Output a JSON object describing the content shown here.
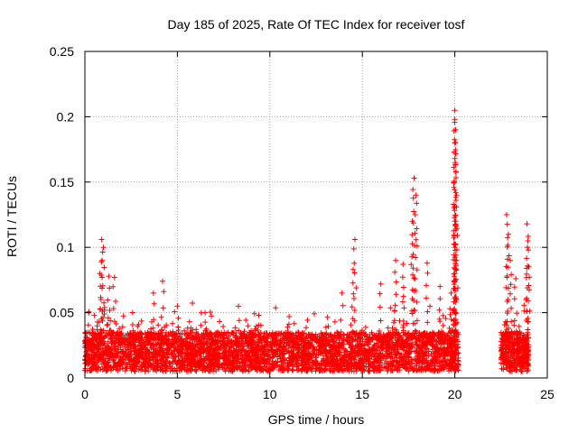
{
  "chart_data": {
    "type": "scatter",
    "title": "Day 185 of 2025, Rate Of TEC Index for receiver tosf",
    "xlabel": "GPS time / hours",
    "ylabel": "ROTI / TECUs",
    "xlim": [
      0,
      25
    ],
    "ylim": [
      0,
      0.25
    ],
    "x_ticks": [
      0,
      5,
      10,
      15,
      20,
      25
    ],
    "x_tick_labels": [
      "0",
      "5",
      "10",
      "15",
      "20",
      "25"
    ],
    "y_ticks": [
      0,
      0.05,
      0.1,
      0.15,
      0.2,
      0.25
    ],
    "y_tick_labels": [
      "0",
      "0.05",
      "0.1",
      "0.15",
      "0.2",
      "0.25"
    ],
    "grid": true,
    "marker": "+",
    "series_color": "#ff0000",
    "series": [
      {
        "name": "ROTI",
        "baseline_segments": [
          {
            "x_start": 0.0,
            "x_end": 20.2,
            "y_min": 0.005,
            "y_max": 0.035
          },
          {
            "x_start": 22.5,
            "x_end": 24.0,
            "y_min": 0.005,
            "y_max": 0.035
          }
        ],
        "peaks": [
          {
            "x": 0.2,
            "y": 0.05
          },
          {
            "x": 0.9,
            "y": 0.106
          },
          {
            "x": 1.0,
            "y": 0.1
          },
          {
            "x": 0.8,
            "y": 0.08
          },
          {
            "x": 1.3,
            "y": 0.078
          },
          {
            "x": 1.6,
            "y": 0.077
          },
          {
            "x": 3.7,
            "y": 0.065
          },
          {
            "x": 4.2,
            "y": 0.074
          },
          {
            "x": 5.0,
            "y": 0.055
          },
          {
            "x": 6.5,
            "y": 0.05
          },
          {
            "x": 8.3,
            "y": 0.055
          },
          {
            "x": 9.4,
            "y": 0.048
          },
          {
            "x": 13.9,
            "y": 0.065
          },
          {
            "x": 14.6,
            "y": 0.106
          },
          {
            "x": 14.5,
            "y": 0.083
          },
          {
            "x": 16.0,
            "y": 0.072
          },
          {
            "x": 16.8,
            "y": 0.09
          },
          {
            "x": 17.2,
            "y": 0.087
          },
          {
            "x": 17.8,
            "y": 0.153
          },
          {
            "x": 17.9,
            "y": 0.14
          },
          {
            "x": 17.7,
            "y": 0.12
          },
          {
            "x": 18.5,
            "y": 0.088
          },
          {
            "x": 19.2,
            "y": 0.07
          },
          {
            "x": 19.8,
            "y": 0.065
          },
          {
            "x": 20.0,
            "y": 0.205
          },
          {
            "x": 20.0,
            "y": 0.198
          },
          {
            "x": 20.0,
            "y": 0.18
          },
          {
            "x": 20.0,
            "y": 0.168
          },
          {
            "x": 20.1,
            "y": 0.14
          },
          {
            "x": 20.0,
            "y": 0.12
          },
          {
            "x": 20.0,
            "y": 0.1
          },
          {
            "x": 20.0,
            "y": 0.08
          },
          {
            "x": 22.8,
            "y": 0.125
          },
          {
            "x": 22.9,
            "y": 0.11
          },
          {
            "x": 23.0,
            "y": 0.09
          },
          {
            "x": 23.3,
            "y": 0.076
          },
          {
            "x": 23.9,
            "y": 0.118
          },
          {
            "x": 23.95,
            "y": 0.105
          },
          {
            "x": 24.0,
            "y": 0.085
          }
        ]
      }
    ]
  }
}
